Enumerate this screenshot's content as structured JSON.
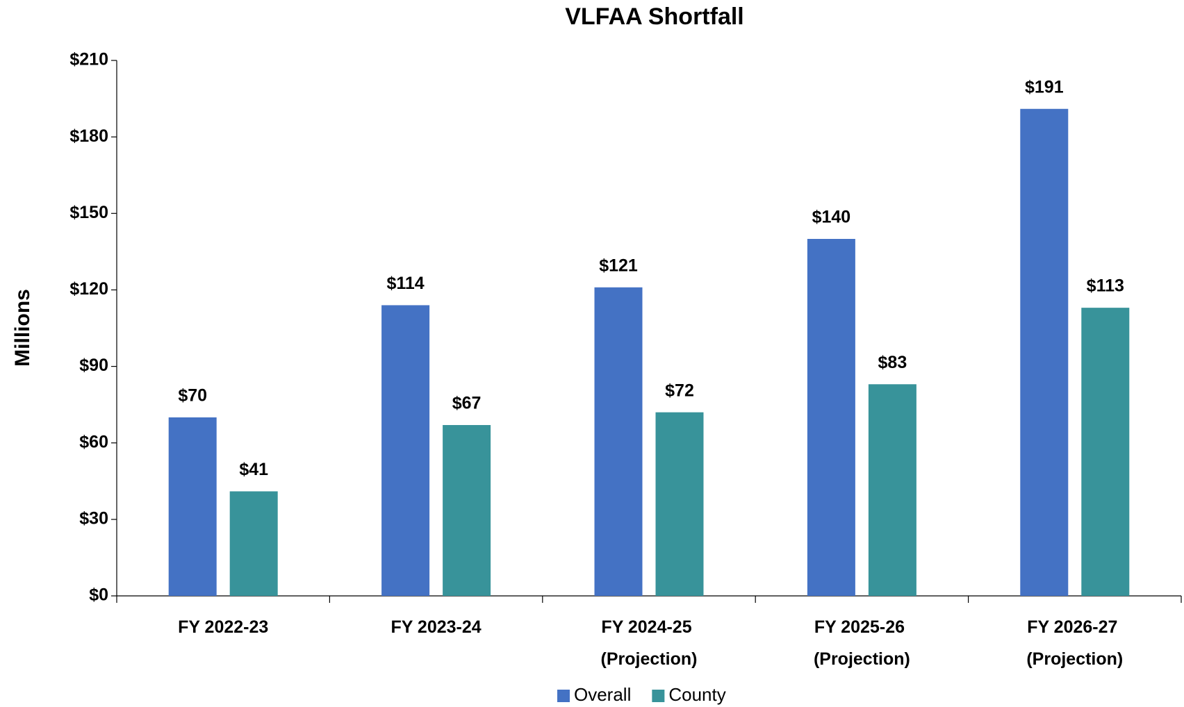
{
  "chart_data": {
    "type": "bar",
    "title": "VLFAA Shortfall",
    "y_label": "Millions",
    "categories": [
      "FY 2022-23",
      "FY 2023-24",
      "FY 2024-25 (Projection)",
      "FY 2025-26 (Projection)",
      "FY 2026-27 (Projection)"
    ],
    "series": [
      {
        "name": "Overall",
        "color": "#4472c4",
        "values": [
          70,
          114,
          121,
          140,
          191
        ],
        "value_labels": [
          "$70",
          "$114",
          "$121",
          "$140",
          "$191"
        ]
      },
      {
        "name": "County",
        "color": "#38939a",
        "values": [
          41,
          67,
          72,
          83,
          113
        ],
        "value_labels": [
          "$41",
          "$67",
          "$72",
          "$83",
          "$113"
        ]
      }
    ],
    "ylim": [
      0,
      210
    ],
    "yticks": [
      {
        "value": 0,
        "label": "$0"
      },
      {
        "value": 30,
        "label": "$30"
      },
      {
        "value": 60,
        "label": "$60"
      },
      {
        "value": 90,
        "label": "$90"
      },
      {
        "value": 120,
        "label": "$120"
      },
      {
        "value": 150,
        "label": "$150"
      },
      {
        "value": 180,
        "label": "$180"
      },
      {
        "value": 210,
        "label": "$210"
      }
    ],
    "grid": false,
    "legend": "bottom"
  }
}
